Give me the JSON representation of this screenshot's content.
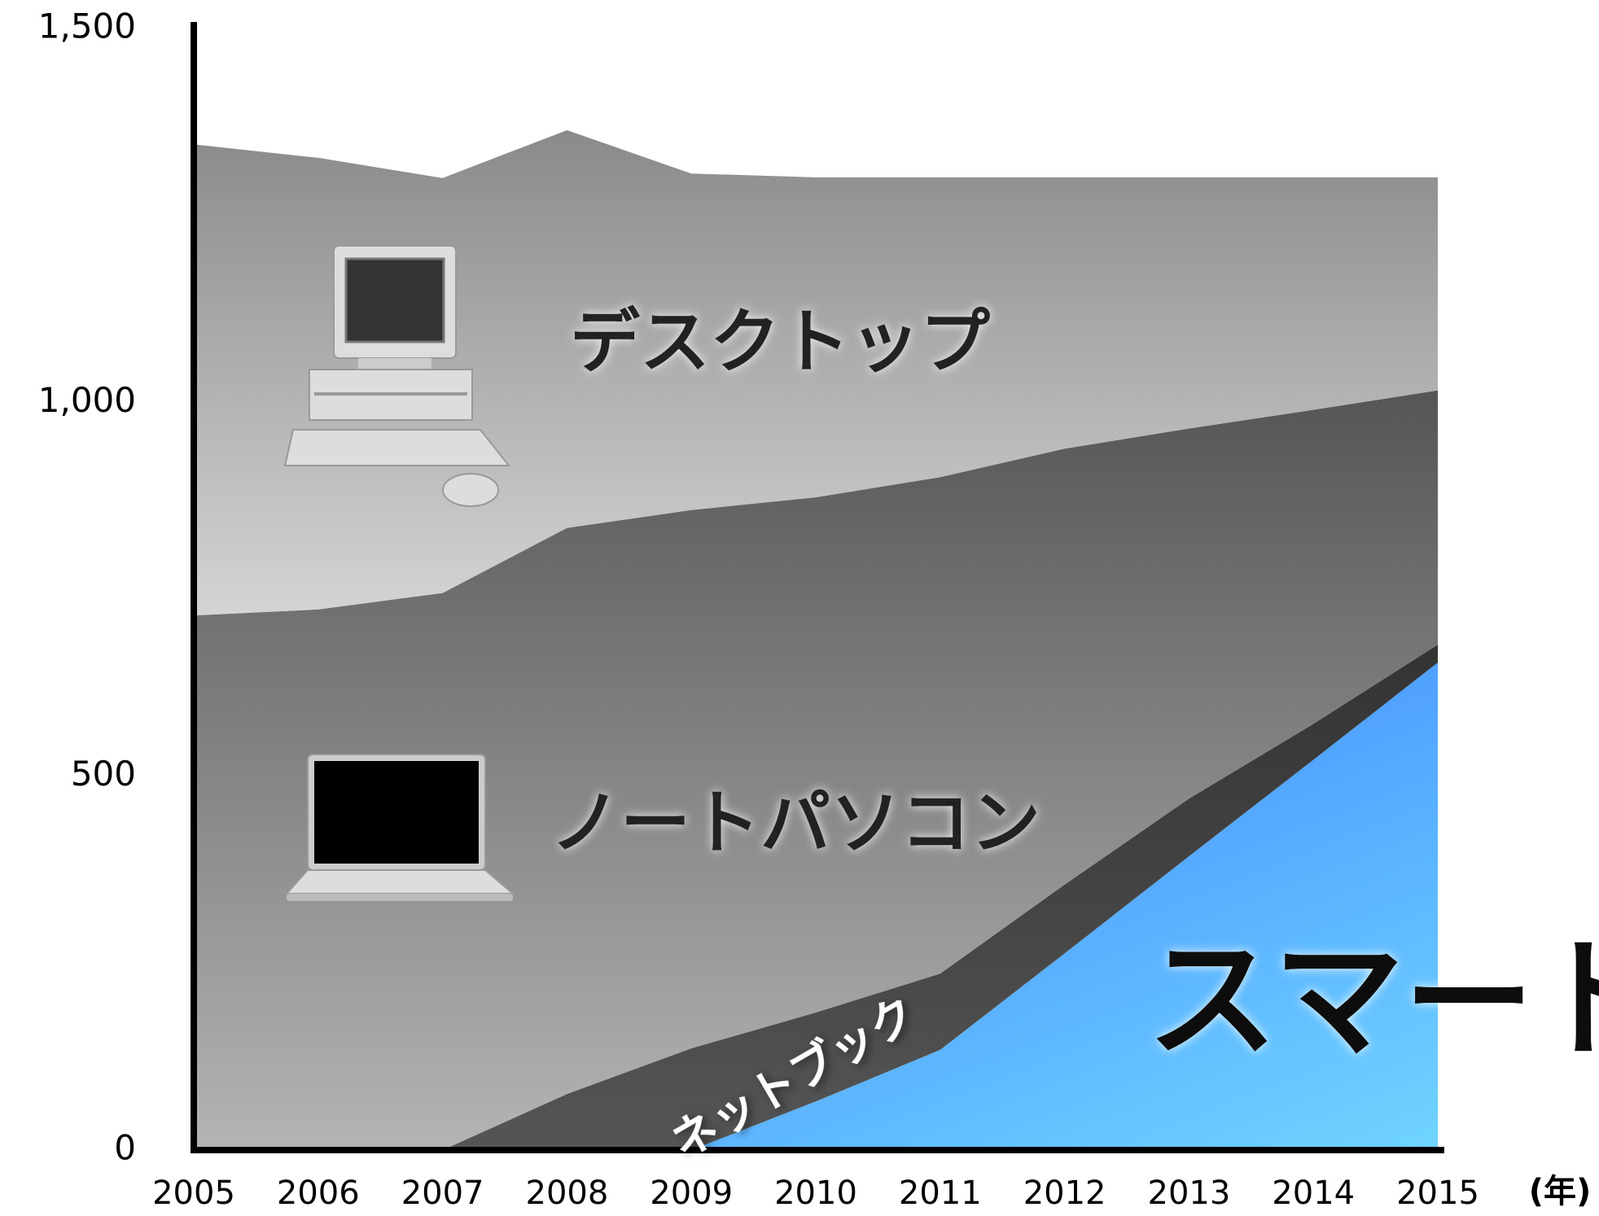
{
  "chart_data": {
    "type": "stacked-area",
    "x": [
      2005,
      2006,
      2007,
      2008,
      2009,
      2010,
      2011,
      2012,
      2013,
      2014,
      2015
    ],
    "xlim": [
      2005,
      2015
    ],
    "xticks": [
      2005,
      2006,
      2007,
      2008,
      2009,
      2010,
      2011,
      2012,
      2013,
      2014,
      2015
    ],
    "x_label": "(年)",
    "ylim": [
      0,
      1500
    ],
    "yticks": [
      0,
      500,
      {
        "value": 1000,
        "label": "1,000"
      },
      {
        "value": 1500,
        "label": "1,500"
      }
    ],
    "series": [
      {
        "name": "スマートフォン",
        "color": "#4a90ff",
        "values": [
          0,
          0,
          0,
          0,
          0,
          65,
          134,
          263,
          393,
          522,
          652
        ]
      },
      {
        "name": "ネットブック",
        "color": "#4a4a4a",
        "values": [
          0,
          0,
          0,
          75,
          136,
          119,
          102,
          92,
          77,
          48,
          24
        ]
      },
      {
        "name": "ノートパソコン",
        "color": "#808080",
        "values": [
          715,
          723,
          745,
          757,
          720,
          689,
          664,
          583,
          495,
          420,
          340
        ]
      },
      {
        "name": "デスクトップ",
        "color": "#b0b0b0",
        "values": [
          630,
          604,
          555,
          532,
          450,
          428,
          401,
          363,
          336,
          311,
          285
        ]
      }
    ]
  }
}
